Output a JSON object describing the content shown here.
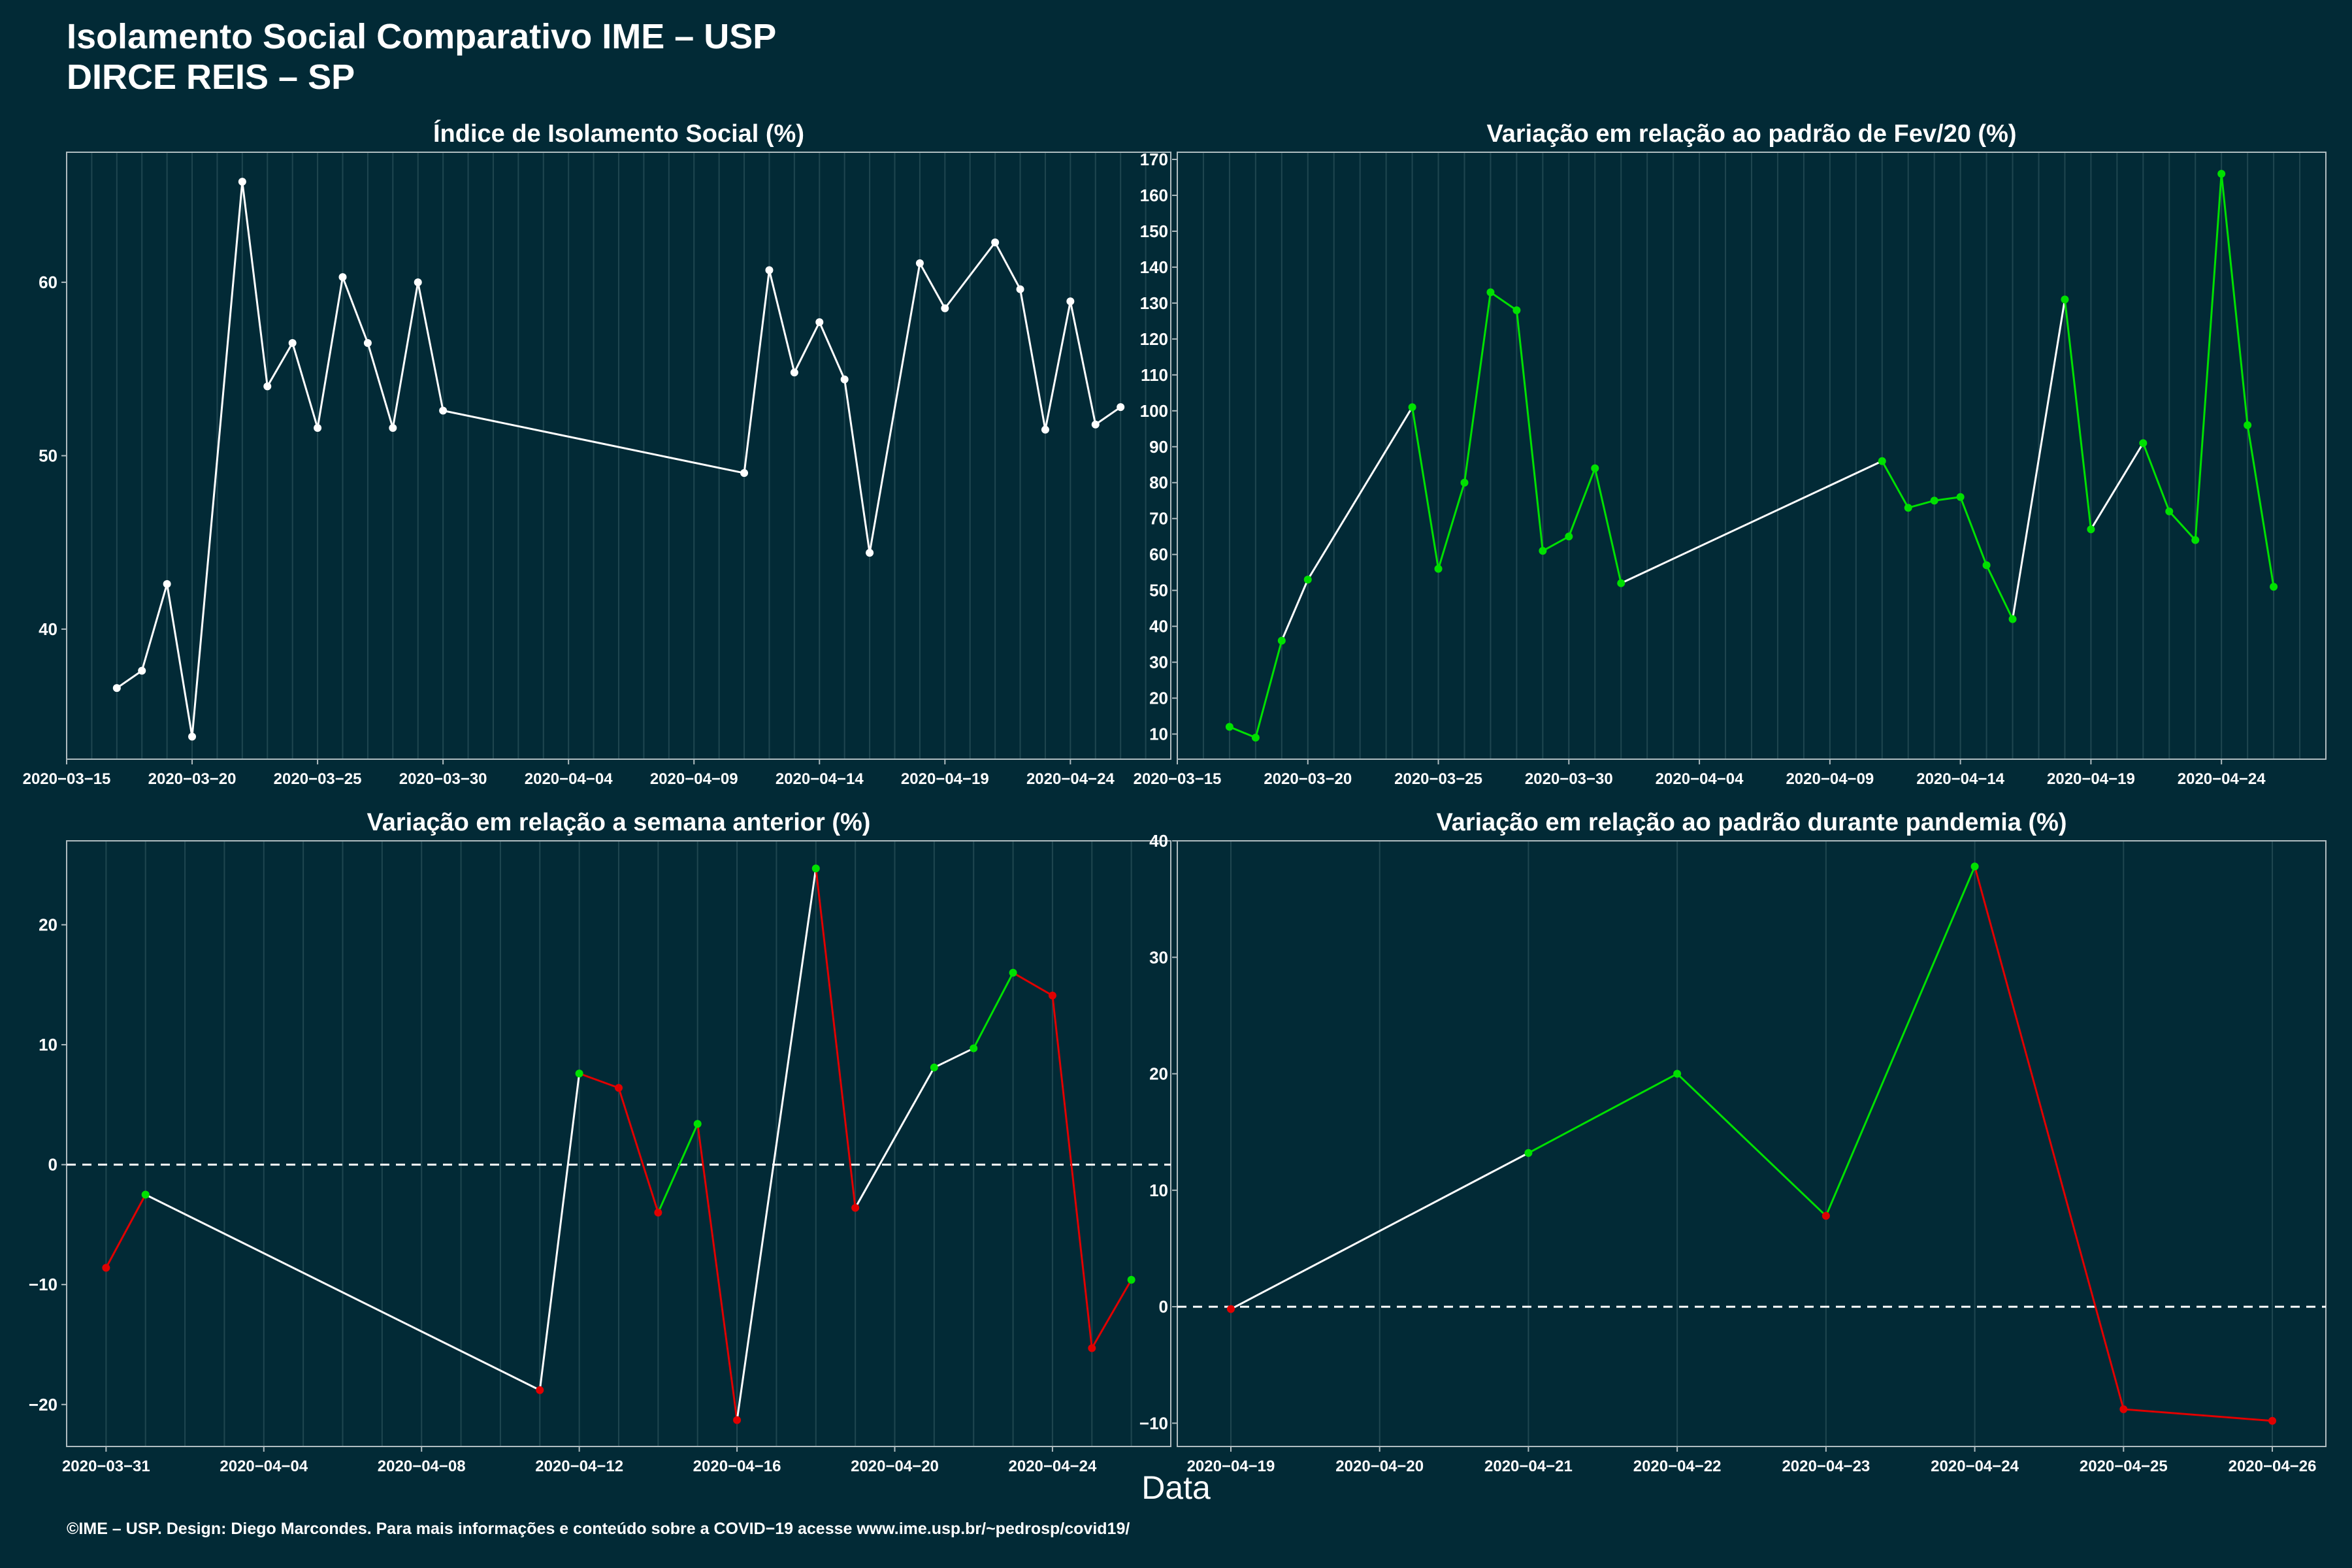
{
  "header": {
    "title_line1": "Isolamento Social Comparativo IME – USP",
    "title_line2": "DIRCE REIS – SP"
  },
  "x_axis_label": "Data",
  "footer": "©IME – USP. Design: Diego Marcondes. Para mais informações e conteúdo sobre a COVID−19 acesse www.ime.usp.br/~pedrosp/covid19/",
  "colors": {
    "background": "#022a36",
    "line_neutral": "#ffffff",
    "positive": "#00e000",
    "negative": "#e00000",
    "grid": "#1f4650",
    "axis": "#b0bcc0"
  },
  "chart_data": [
    {
      "id": "isolamento",
      "type": "line",
      "title": "Índice de Isolamento Social (%)",
      "x": [
        "2020-03-17",
        "2020-03-18",
        "2020-03-19",
        "2020-03-20",
        "2020-03-22",
        "2020-03-23",
        "2020-03-24",
        "2020-03-25",
        "2020-03-26",
        "2020-03-27",
        "2020-03-28",
        "2020-03-29",
        "2020-03-30",
        "2020-04-11",
        "2020-04-12",
        "2020-04-13",
        "2020-04-14",
        "2020-04-15",
        "2020-04-16",
        "2020-04-18",
        "2020-04-19",
        "2020-04-21",
        "2020-04-22",
        "2020-04-23",
        "2020-04-24",
        "2020-04-25",
        "2020-04-26"
      ],
      "values": [
        36.6,
        37.6,
        42.6,
        33.8,
        65.8,
        54.0,
        56.5,
        51.6,
        60.3,
        56.5,
        51.6,
        60.0,
        52.6,
        49.0,
        60.7,
        54.8,
        57.7,
        54.4,
        44.4,
        61.1,
        58.5,
        62.3,
        59.6,
        51.5,
        58.9,
        51.8,
        52.8
      ],
      "color_mode": "white",
      "xlim": [
        "2020-03-15",
        "2020-04-28"
      ],
      "ylim": [
        32.5,
        67.5
      ],
      "yticks": [
        40,
        50,
        60
      ],
      "xticks": [
        "2020-03-15",
        "2020-03-20",
        "2020-03-25",
        "2020-03-30",
        "2020-04-04",
        "2020-04-09",
        "2020-04-14",
        "2020-04-19",
        "2020-04-24"
      ],
      "grid": true
    },
    {
      "id": "variacao-fev",
      "type": "line",
      "title": "Variação em relação ao padrão de Fev/20 (%)",
      "x": [
        "2020-03-17",
        "2020-03-18",
        "2020-03-19",
        "2020-03-20",
        "2020-03-24",
        "2020-03-25",
        "2020-03-26",
        "2020-03-27",
        "2020-03-28",
        "2020-03-29",
        "2020-03-30",
        "2020-03-31",
        "2020-04-01",
        "2020-04-11",
        "2020-04-12",
        "2020-04-13",
        "2020-04-14",
        "2020-04-15",
        "2020-04-16",
        "2020-04-18",
        "2020-04-19",
        "2020-04-21",
        "2020-04-22",
        "2020-04-23",
        "2020-04-24",
        "2020-04-25",
        "2020-04-26"
      ],
      "values": [
        12,
        9,
        36,
        53,
        101,
        56,
        80,
        133,
        128,
        61,
        65,
        84,
        52,
        86,
        73,
        75,
        76,
        57,
        42,
        131,
        67,
        91,
        72,
        64,
        166,
        96,
        51
      ],
      "color_mode": "mixed",
      "xlim": [
        "2020-03-15",
        "2020-04-28"
      ],
      "ylim": [
        3,
        172
      ],
      "yticks": [
        10,
        20,
        30,
        40,
        50,
        60,
        70,
        80,
        90,
        100,
        110,
        120,
        130,
        140,
        150,
        160,
        170
      ],
      "xticks": [
        "2020-03-15",
        "2020-03-20",
        "2020-03-25",
        "2020-03-30",
        "2020-04-04",
        "2020-04-09",
        "2020-04-14",
        "2020-04-19",
        "2020-04-24"
      ],
      "grid": true
    },
    {
      "id": "variacao-semana",
      "type": "line",
      "title": "Variação em relação a semana anterior (%)",
      "x": [
        "2020-03-31",
        "2020-04-01",
        "2020-04-11",
        "2020-04-12",
        "2020-04-13",
        "2020-04-14",
        "2020-04-15",
        "2020-04-16",
        "2020-04-18",
        "2020-04-19",
        "2020-04-21",
        "2020-04-22",
        "2020-04-23",
        "2020-04-24",
        "2020-04-25",
        "2020-04-26"
      ],
      "values": [
        -8.6,
        -2.5,
        -18.8,
        7.6,
        6.4,
        -4.0,
        3.4,
        -21.3,
        24.7,
        -3.6,
        8.1,
        9.7,
        16.0,
        14.1,
        -15.3,
        -9.6
      ],
      "color_mode": "sign",
      "reference_line": 0,
      "xlim": [
        "2020-03-30",
        "2020-04-27"
      ],
      "ylim": [
        -23.5,
        27.0
      ],
      "yticks": [
        -20,
        -10,
        0,
        10,
        20
      ],
      "xticks": [
        "2020-03-31",
        "2020-04-04",
        "2020-04-08",
        "2020-04-12",
        "2020-04-16",
        "2020-04-20",
        "2020-04-24"
      ],
      "grid": true
    },
    {
      "id": "variacao-pandemia",
      "type": "line",
      "title": "Variação em relação ao padrão durante pandemia (%)",
      "x": [
        "2020-04-19",
        "2020-04-21",
        "2020-04-22",
        "2020-04-23",
        "2020-04-24",
        "2020-04-25",
        "2020-04-26"
      ],
      "values": [
        -0.2,
        13.2,
        20.0,
        7.8,
        37.8,
        -8.8,
        -9.8
      ],
      "color_mode": "sign",
      "reference_line": 0,
      "xlim": [
        "2020-04-18.64",
        "2020-04-26.36"
      ],
      "ylim": [
        -12,
        40
      ],
      "yticks": [
        -10,
        0,
        10,
        20,
        30,
        40
      ],
      "xticks": [
        "2020-04-19",
        "2020-04-20",
        "2020-04-21",
        "2020-04-22",
        "2020-04-23",
        "2020-04-24",
        "2020-04-25",
        "2020-04-26"
      ],
      "grid": true
    }
  ]
}
